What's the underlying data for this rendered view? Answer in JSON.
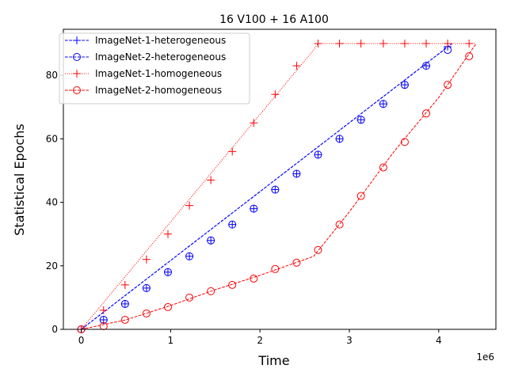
{
  "chart_data": {
    "type": "line",
    "title": "16 V100 + 16 A100",
    "xlabel": "Time",
    "ylabel": "Statistical Epochs",
    "x_offset_label": "1e6",
    "xlim": [
      -0.2,
      4.64
    ],
    "ylim": [
      0,
      94.5
    ],
    "x_scale_multiplier": 1000000,
    "xticks": [
      0,
      1,
      2,
      3,
      4
    ],
    "xtick_labels": [
      "0",
      "1",
      "2",
      "3",
      "4"
    ],
    "yticks": [
      0,
      20,
      40,
      60,
      80
    ],
    "ytick_labels": [
      "0",
      "20",
      "40",
      "60",
      "80"
    ],
    "grid": false,
    "legend_position": "top-left",
    "series": [
      {
        "name": "ImageNet-1-heterogeneous",
        "color": "#0000ff",
        "linestyle": "dashed",
        "marker": "plus",
        "line_x": [
          0,
          4.15
        ],
        "line_y": [
          0,
          90
        ],
        "x": [
          0.0,
          0.25,
          0.49,
          0.73,
          0.97,
          1.21,
          1.45,
          1.69,
          1.93,
          2.17,
          2.41,
          2.65,
          2.89,
          3.13,
          3.38,
          3.62,
          3.86,
          4.1
        ],
        "y": [
          0,
          3,
          8,
          13,
          18,
          23,
          28,
          33,
          38,
          44,
          49,
          55,
          60,
          66,
          71,
          77,
          83,
          89
        ]
      },
      {
        "name": "ImageNet-2-heterogeneous",
        "color": "#0000ff",
        "linestyle": "dashed",
        "marker": "circle",
        "line_x": [
          0,
          4.15
        ],
        "line_y": [
          0,
          90
        ],
        "x": [
          0.0,
          0.25,
          0.49,
          0.73,
          0.97,
          1.21,
          1.45,
          1.69,
          1.93,
          2.17,
          2.41,
          2.65,
          2.89,
          3.13,
          3.38,
          3.62,
          3.86,
          4.1
        ],
        "y": [
          0,
          3,
          8,
          13,
          18,
          23,
          28,
          33,
          38,
          44,
          49,
          55,
          60,
          66,
          71,
          77,
          83,
          88
        ]
      },
      {
        "name": "ImageNet-1-homogeneous",
        "color": "#ff0000",
        "linestyle": "dotted",
        "marker": "plus",
        "line_x": [
          0,
          2.6,
          2.65,
          4.4
        ],
        "line_y": [
          0,
          88,
          90,
          90
        ],
        "x": [
          0.0,
          0.25,
          0.49,
          0.73,
          0.97,
          1.21,
          1.45,
          1.69,
          1.93,
          2.17,
          2.41,
          2.65,
          2.89,
          3.13,
          3.38,
          3.62,
          3.86,
          4.1,
          4.34
        ],
        "y": [
          0,
          6,
          14,
          22,
          30,
          39,
          47,
          56,
          65,
          74,
          83,
          90,
          90,
          90,
          90,
          90,
          90,
          90,
          90
        ]
      },
      {
        "name": "ImageNet-2-homogeneous",
        "color": "#ff0000",
        "linestyle": "dashed",
        "marker": "circle",
        "line_x": [
          0,
          0.5,
          1.0,
          1.5,
          2.0,
          2.5,
          2.6,
          3.0,
          3.5,
          4.0,
          4.42
        ],
        "line_y": [
          0,
          3,
          7.5,
          12.5,
          17,
          22,
          23,
          37,
          56,
          73,
          90
        ],
        "x": [
          0.0,
          0.25,
          0.49,
          0.73,
          0.97,
          1.21,
          1.45,
          1.69,
          1.93,
          2.17,
          2.41,
          2.65,
          2.89,
          3.13,
          3.38,
          3.62,
          3.86,
          4.1,
          4.34
        ],
        "y": [
          0,
          1,
          3,
          5,
          7,
          10,
          12,
          14,
          16,
          19,
          21,
          25,
          33,
          42,
          51,
          59,
          68,
          77,
          86
        ]
      }
    ]
  }
}
